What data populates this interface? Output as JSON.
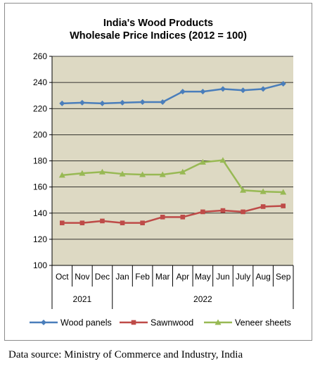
{
  "chart_data": {
    "type": "line",
    "title_lines": [
      "India's Wood Products",
      "Wholesale Price Indices (2012 = 100)"
    ],
    "categories": [
      "Oct",
      "Nov",
      "Dec",
      "Jan",
      "Feb",
      "Mar",
      "Apr",
      "May",
      "Jun",
      "July",
      "Aug",
      "Sep"
    ],
    "year_groups": [
      {
        "label": "2021",
        "start": 0,
        "end": 2
      },
      {
        "label": "2022",
        "start": 3,
        "end": 11
      }
    ],
    "ylim": [
      100,
      260
    ],
    "yticks": [
      100,
      120,
      140,
      160,
      180,
      200,
      220,
      240,
      260
    ],
    "grid": true,
    "legend_position": "bottom",
    "plot_background": "#ddd9c3",
    "series": [
      {
        "name": "Wood panels",
        "color": "#4a7ebb",
        "marker": "diamond",
        "values": [
          224,
          224.5,
          224,
          224.5,
          225,
          225,
          233,
          233,
          235,
          234,
          235,
          239
        ]
      },
      {
        "name": "Sawnwood",
        "color": "#be4b48",
        "marker": "square",
        "values": [
          132.5,
          132.5,
          134,
          132.5,
          132.5,
          137,
          137,
          141,
          142,
          141,
          145,
          145.5
        ]
      },
      {
        "name": "Veneer sheets",
        "color": "#98b954",
        "marker": "triangle",
        "values": [
          169,
          170.5,
          171.5,
          170,
          169.5,
          169.5,
          171.5,
          179,
          180.5,
          157.5,
          156.5,
          156
        ]
      }
    ]
  },
  "source_note": "Data source: Ministry of Commerce and Industry, India"
}
